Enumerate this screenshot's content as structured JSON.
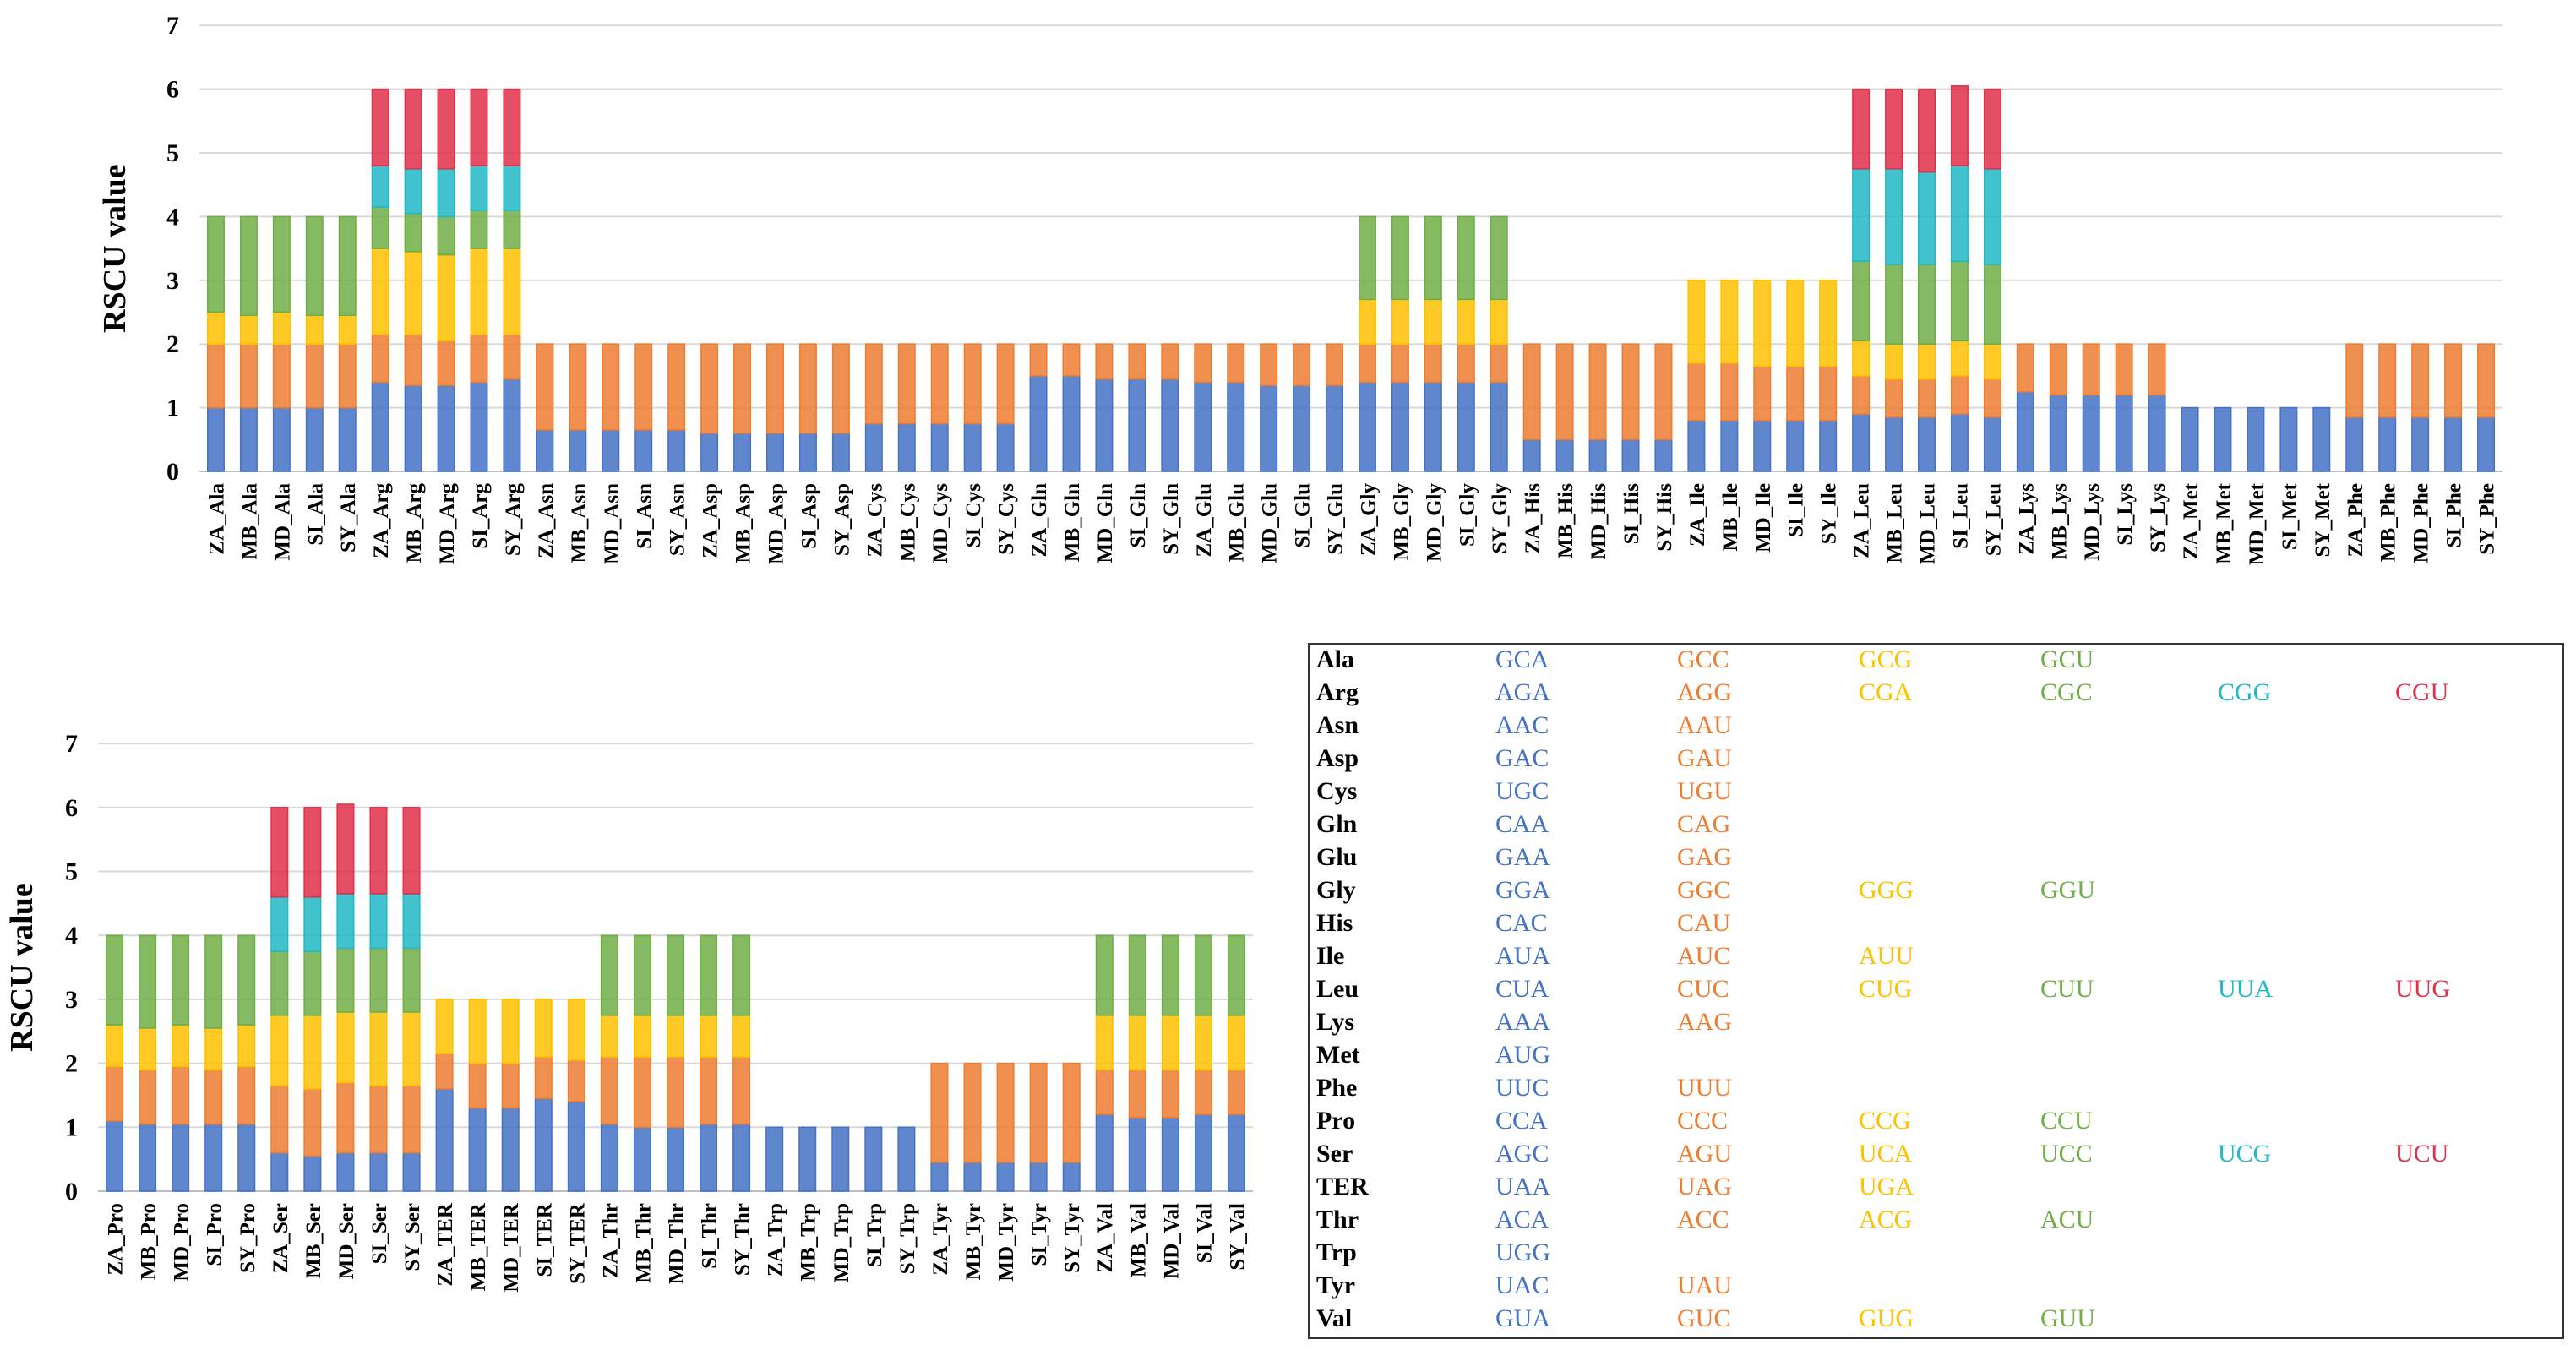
{
  "colors": [
    "#4472c4",
    "#ed7d31",
    "#ffc000",
    "#70ad47",
    "#21b7c4",
    "#e0304a"
  ],
  "chart_data": [
    {
      "type": "bar",
      "stacked": true,
      "ylabel": "RSCU value",
      "ylim": [
        0,
        7
      ],
      "yticks": [
        "0",
        "1",
        "2",
        "3",
        "4",
        "5",
        "6",
        "7"
      ],
      "grid": true,
      "categories": [
        "ZA_Ala",
        "MB_Ala",
        "MD_Ala",
        "SI_Ala",
        "SY_Ala",
        "ZA_Arg",
        "MB_Arg",
        "MD_Arg",
        "SI_Arg",
        "SY_Arg",
        "ZA_Asn",
        "MB_Asn",
        "MD_Asn",
        "SI_Asn",
        "SY_Asn",
        "ZA_Asp",
        "MB_Asp",
        "MD_Asp",
        "SI_Asp",
        "SY_Asp",
        "ZA_Cys",
        "MB_Cys",
        "MD_Cys",
        "SI_Cys",
        "SY_Cys",
        "ZA_Gln",
        "MB_Gln",
        "MD_Gln",
        "SI_Gln",
        "SY_Gln",
        "ZA_Glu",
        "MB_Glu",
        "MD_Glu",
        "SI_Glu",
        "SY_Glu",
        "ZA_Gly",
        "MB_Gly",
        "MD_Gly",
        "SI_Gly",
        "SY_Gly",
        "ZA_His",
        "MB_His",
        "MD_His",
        "SI_His",
        "SY_His",
        "ZA_Ile",
        "MB_Ile",
        "MD_Ile",
        "SI_Ile",
        "SY_Ile",
        "ZA_Leu",
        "MB_Leu",
        "MD_Leu",
        "SI_Leu",
        "SY_Leu",
        "ZA_Lys",
        "MB_Lys",
        "MD_Lys",
        "SI_Lys",
        "SY_Lys",
        "ZA_Met",
        "MB_Met",
        "MD_Met",
        "SI_Met",
        "SY_Met",
        "ZA_Phe",
        "MB_Phe",
        "MD_Phe",
        "SI_Phe",
        "SY_Phe"
      ],
      "stacks": [
        [
          1.0,
          1.0,
          0.5,
          1.5
        ],
        [
          1.0,
          1.0,
          0.45,
          1.55
        ],
        [
          1.0,
          1.0,
          0.5,
          1.5
        ],
        [
          1.0,
          1.0,
          0.45,
          1.55
        ],
        [
          1.0,
          1.0,
          0.45,
          1.55
        ],
        [
          1.4,
          0.75,
          1.35,
          0.65,
          0.65,
          1.2
        ],
        [
          1.35,
          0.8,
          1.3,
          0.6,
          0.7,
          1.25
        ],
        [
          1.35,
          0.7,
          1.35,
          0.6,
          0.75,
          1.25
        ],
        [
          1.4,
          0.75,
          1.35,
          0.6,
          0.7,
          1.2
        ],
        [
          1.45,
          0.7,
          1.35,
          0.6,
          0.7,
          1.2
        ],
        [
          0.65,
          1.35
        ],
        [
          0.65,
          1.35
        ],
        [
          0.65,
          1.35
        ],
        [
          0.65,
          1.35
        ],
        [
          0.65,
          1.35
        ],
        [
          0.6,
          1.4
        ],
        [
          0.6,
          1.4
        ],
        [
          0.6,
          1.4
        ],
        [
          0.6,
          1.4
        ],
        [
          0.6,
          1.4
        ],
        [
          0.75,
          1.25
        ],
        [
          0.75,
          1.25
        ],
        [
          0.75,
          1.25
        ],
        [
          0.75,
          1.25
        ],
        [
          0.75,
          1.25
        ],
        [
          1.5,
          0.5
        ],
        [
          1.5,
          0.5
        ],
        [
          1.45,
          0.55
        ],
        [
          1.45,
          0.55
        ],
        [
          1.45,
          0.55
        ],
        [
          1.4,
          0.6
        ],
        [
          1.4,
          0.6
        ],
        [
          1.35,
          0.65
        ],
        [
          1.35,
          0.65
        ],
        [
          1.35,
          0.65
        ],
        [
          1.4,
          0.6,
          0.7,
          1.3
        ],
        [
          1.4,
          0.6,
          0.7,
          1.3
        ],
        [
          1.4,
          0.6,
          0.7,
          1.3
        ],
        [
          1.4,
          0.6,
          0.7,
          1.3
        ],
        [
          1.4,
          0.6,
          0.7,
          1.3
        ],
        [
          0.5,
          1.5
        ],
        [
          0.5,
          1.5
        ],
        [
          0.5,
          1.5
        ],
        [
          0.5,
          1.5
        ],
        [
          0.5,
          1.5
        ],
        [
          0.8,
          0.9,
          1.3
        ],
        [
          0.8,
          0.9,
          1.3
        ],
        [
          0.8,
          0.85,
          1.35
        ],
        [
          0.8,
          0.85,
          1.35
        ],
        [
          0.8,
          0.85,
          1.35
        ],
        [
          0.9,
          0.6,
          0.55,
          1.25,
          1.45,
          1.25
        ],
        [
          0.85,
          0.6,
          0.55,
          1.25,
          1.5,
          1.25
        ],
        [
          0.85,
          0.6,
          0.55,
          1.25,
          1.45,
          1.3
        ],
        [
          0.9,
          0.6,
          0.55,
          1.25,
          1.5,
          1.25
        ],
        [
          0.85,
          0.6,
          0.55,
          1.25,
          1.5,
          1.25
        ],
        [
          1.25,
          0.75
        ],
        [
          1.2,
          0.8
        ],
        [
          1.2,
          0.8
        ],
        [
          1.2,
          0.8
        ],
        [
          1.2,
          0.8
        ],
        [
          1.0
        ],
        [
          1.0
        ],
        [
          1.0
        ],
        [
          1.0
        ],
        [
          1.0
        ],
        [
          0.85,
          1.15
        ],
        [
          0.85,
          1.15
        ],
        [
          0.85,
          1.15
        ],
        [
          0.85,
          1.15
        ],
        [
          0.85,
          1.15
        ]
      ]
    },
    {
      "type": "bar",
      "stacked": true,
      "ylabel": "RSCU value",
      "ylim": [
        0,
        7
      ],
      "yticks": [
        "0",
        "1",
        "2",
        "3",
        "4",
        "5",
        "6",
        "7"
      ],
      "grid": true,
      "categories": [
        "ZA_Pro",
        "MB_Pro",
        "MD_Pro",
        "SI_Pro",
        "SY_Pro",
        "ZA_Ser",
        "MB_Ser",
        "MD_Ser",
        "SI_Ser",
        "SY_Ser",
        "ZA_TER",
        "MB_TER",
        "MD_TER",
        "SI_TER",
        "SY_TER",
        "ZA_Thr",
        "MB_Thr",
        "MD_Thr",
        "SI_Thr",
        "SY_Thr",
        "ZA_Trp",
        "MB_Trp",
        "MD_Trp",
        "SI_Trp",
        "SY_Trp",
        "ZA_Tyr",
        "MB_Tyr",
        "MD_Tyr",
        "SI_Tyr",
        "SY_Tyr",
        "ZA_Val",
        "MB_Val",
        "MD_Val",
        "SI_Val",
        "SY_Val"
      ],
      "stacks": [
        [
          1.1,
          0.85,
          0.65,
          1.4
        ],
        [
          1.05,
          0.85,
          0.65,
          1.45
        ],
        [
          1.05,
          0.9,
          0.65,
          1.4
        ],
        [
          1.05,
          0.85,
          0.65,
          1.45
        ],
        [
          1.05,
          0.9,
          0.65,
          1.4
        ],
        [
          0.6,
          1.05,
          1.1,
          1.0,
          0.85,
          1.4
        ],
        [
          0.55,
          1.05,
          1.15,
          1.0,
          0.85,
          1.4
        ],
        [
          0.6,
          1.1,
          1.1,
          1.0,
          0.85,
          1.4
        ],
        [
          0.6,
          1.05,
          1.15,
          1.0,
          0.85,
          1.35
        ],
        [
          0.6,
          1.05,
          1.15,
          1.0,
          0.85,
          1.35
        ],
        [
          1.6,
          0.55,
          0.85
        ],
        [
          1.3,
          0.7,
          1.0
        ],
        [
          1.3,
          0.7,
          1.0
        ],
        [
          1.45,
          0.65,
          0.9
        ],
        [
          1.4,
          0.65,
          0.95
        ],
        [
          1.05,
          1.05,
          0.65,
          1.25
        ],
        [
          1.0,
          1.1,
          0.65,
          1.25
        ],
        [
          1.0,
          1.1,
          0.65,
          1.25
        ],
        [
          1.05,
          1.05,
          0.65,
          1.25
        ],
        [
          1.05,
          1.05,
          0.65,
          1.25
        ],
        [
          1.0
        ],
        [
          1.0
        ],
        [
          1.0
        ],
        [
          1.0
        ],
        [
          1.0
        ],
        [
          0.45,
          1.55
        ],
        [
          0.45,
          1.55
        ],
        [
          0.45,
          1.55
        ],
        [
          0.45,
          1.55
        ],
        [
          0.45,
          1.55
        ],
        [
          1.2,
          0.7,
          0.85,
          1.25
        ],
        [
          1.15,
          0.75,
          0.85,
          1.25
        ],
        [
          1.15,
          0.75,
          0.85,
          1.25
        ],
        [
          1.2,
          0.7,
          0.85,
          1.25
        ],
        [
          1.2,
          0.7,
          0.85,
          1.25
        ]
      ]
    }
  ],
  "legend_table": [
    {
      "aa": "Ala",
      "codons": [
        "GCA",
        "GCC",
        "GCG",
        "GCU"
      ]
    },
    {
      "aa": "Arg",
      "codons": [
        "AGA",
        "AGG",
        "CGA",
        "CGC",
        "CGG",
        "CGU"
      ]
    },
    {
      "aa": "Asn",
      "codons": [
        "AAC",
        "AAU"
      ]
    },
    {
      "aa": "Asp",
      "codons": [
        "GAC",
        "GAU"
      ]
    },
    {
      "aa": "Cys",
      "codons": [
        "UGC",
        "UGU"
      ]
    },
    {
      "aa": "Gln",
      "codons": [
        "CAA",
        "CAG"
      ]
    },
    {
      "aa": "Glu",
      "codons": [
        "GAA",
        "GAG"
      ]
    },
    {
      "aa": "Gly",
      "codons": [
        "GGA",
        "GGC",
        "GGG",
        "GGU"
      ]
    },
    {
      "aa": "His",
      "codons": [
        "CAC",
        "CAU"
      ]
    },
    {
      "aa": "Ile",
      "codons": [
        "AUA",
        "AUC",
        "AUU"
      ]
    },
    {
      "aa": "Leu",
      "codons": [
        "CUA",
        "CUC",
        "CUG",
        "CUU",
        "UUA",
        "UUG"
      ]
    },
    {
      "aa": "Lys",
      "codons": [
        "AAA",
        "AAG"
      ]
    },
    {
      "aa": "Met",
      "codons": [
        "AUG"
      ]
    },
    {
      "aa": "Phe",
      "codons": [
        "UUC",
        "UUU"
      ]
    },
    {
      "aa": "Pro",
      "codons": [
        "CCA",
        "CCC",
        "CCG",
        "CCU"
      ]
    },
    {
      "aa": "Ser",
      "codons": [
        "AGC",
        "AGU",
        "UCA",
        "UCC",
        "UCG",
        "UCU"
      ]
    },
    {
      "aa": "TER",
      "codons": [
        "UAA",
        "UAG",
        "UGA"
      ]
    },
    {
      "aa": "Thr",
      "codons": [
        "ACA",
        "ACC",
        "ACG",
        "ACU"
      ]
    },
    {
      "aa": "Trp",
      "codons": [
        "UGG"
      ]
    },
    {
      "aa": "Tyr",
      "codons": [
        "UAC",
        "UAU"
      ]
    },
    {
      "aa": "Val",
      "codons": [
        "GUA",
        "GUC",
        "GUG",
        "GUU"
      ]
    }
  ]
}
